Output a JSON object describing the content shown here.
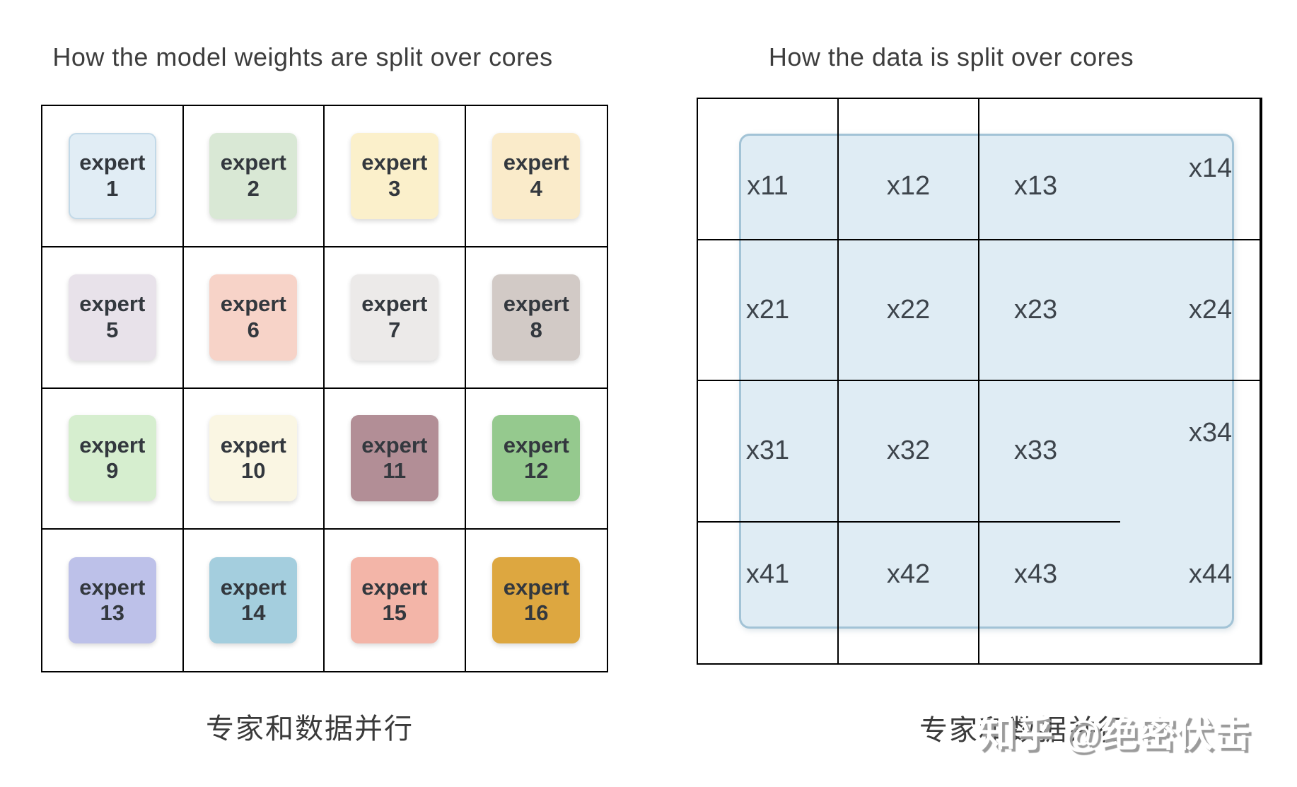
{
  "left_panel": {
    "title": "How the model weights are split over cores",
    "caption": "专家和数据并行",
    "experts": [
      {
        "word": "expert",
        "num": "1",
        "fill": "#e1edf5",
        "border": "#c2d9e8"
      },
      {
        "word": "expert",
        "num": "2",
        "fill": "#d9e8d5",
        "border": ""
      },
      {
        "word": "expert",
        "num": "3",
        "fill": "#fbf0cb",
        "border": ""
      },
      {
        "word": "expert",
        "num": "4",
        "fill": "#faebca",
        "border": ""
      },
      {
        "word": "expert",
        "num": "5",
        "fill": "#e8e2ea",
        "border": ""
      },
      {
        "word": "expert",
        "num": "6",
        "fill": "#f7d3c8",
        "border": ""
      },
      {
        "word": "expert",
        "num": "7",
        "fill": "#eceae9",
        "border": ""
      },
      {
        "word": "expert",
        "num": "8",
        "fill": "#d2cac6",
        "border": ""
      },
      {
        "word": "expert",
        "num": "9",
        "fill": "#d6eecf",
        "border": ""
      },
      {
        "word": "expert",
        "num": "10",
        "fill": "#faf6e3",
        "border": ""
      },
      {
        "word": "expert",
        "num": "11",
        "fill": "#b28e96",
        "border": ""
      },
      {
        "word": "expert",
        "num": "12",
        "fill": "#95c98e",
        "border": ""
      },
      {
        "word": "expert",
        "num": "13",
        "fill": "#bdc1e9",
        "border": ""
      },
      {
        "word": "expert",
        "num": "14",
        "fill": "#a4cede",
        "border": ""
      },
      {
        "word": "expert",
        "num": "15",
        "fill": "#f3b5a8",
        "border": ""
      },
      {
        "word": "expert",
        "num": "16",
        "fill": "#dda740",
        "border": ""
      }
    ]
  },
  "right_panel": {
    "title": "How the data is split over cores",
    "caption": "专家和数据并行",
    "overlay": {
      "fill": "#dfecf4",
      "border": "#a2c3d6"
    },
    "rows": [
      [
        "x11",
        "x12",
        "x13",
        "x14"
      ],
      [
        "x21",
        "x22",
        "x23",
        "x24"
      ],
      [
        "x31",
        "x32",
        "x33",
        "x34"
      ],
      [
        "x41",
        "x42",
        "x43",
        "x44"
      ]
    ]
  },
  "watermark": {
    "text": "知乎 @绝密伏击"
  }
}
